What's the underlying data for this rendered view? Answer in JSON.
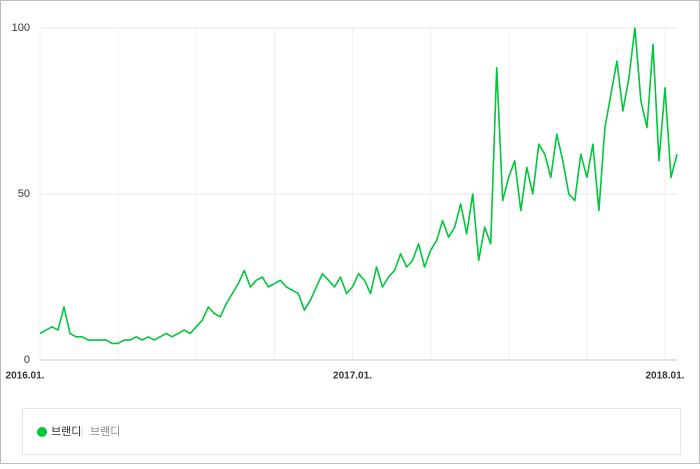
{
  "chart_data": {
    "type": "line",
    "categories": [
      "2016.01.",
      null,
      null,
      null,
      null,
      null,
      null,
      null,
      null,
      null,
      null,
      null,
      null,
      null,
      null,
      null,
      null,
      null,
      null,
      null,
      null,
      null,
      null,
      null,
      null,
      null,
      null,
      null,
      null,
      null,
      null,
      null,
      null,
      null,
      null,
      null,
      null,
      null,
      null,
      null,
      null,
      null,
      null,
      null,
      null,
      null,
      null,
      null,
      null,
      null,
      null,
      null,
      "2017.01.",
      null,
      null,
      null,
      null,
      null,
      null,
      null,
      null,
      null,
      null,
      null,
      null,
      null,
      null,
      null,
      null,
      null,
      null,
      null,
      null,
      null,
      null,
      null,
      null,
      null,
      null,
      null,
      null,
      null,
      null,
      null,
      null,
      null,
      null,
      null,
      null,
      null,
      null,
      null,
      null,
      null,
      null,
      null,
      null,
      null,
      null,
      null,
      null,
      null,
      null,
      null,
      "2018.01.",
      null,
      null
    ],
    "series": [
      {
        "name": "브랜디",
        "color": "#00c73c",
        "values": [
          8,
          9,
          10,
          9,
          16,
          8,
          7,
          7,
          6,
          6,
          6,
          6,
          5,
          5,
          6,
          6,
          7,
          6,
          7,
          6,
          7,
          8,
          7,
          8,
          9,
          8,
          10,
          12,
          16,
          14,
          13,
          17,
          20,
          23,
          27,
          22,
          24,
          25,
          22,
          23,
          24,
          22,
          21,
          20,
          15,
          18,
          22,
          26,
          24,
          22,
          25,
          20,
          22,
          26,
          24,
          20,
          28,
          22,
          25,
          27,
          32,
          28,
          30,
          35,
          28,
          33,
          36,
          42,
          37,
          40,
          47,
          38,
          50,
          30,
          40,
          35,
          88,
          48,
          55,
          60,
          45,
          58,
          50,
          65,
          62,
          55,
          68,
          60,
          50,
          48,
          62,
          55,
          65,
          45,
          70,
          80,
          90,
          75,
          85,
          100,
          78,
          70,
          95,
          60,
          82,
          55,
          62
        ]
      }
    ],
    "legend_keyword": "브랜디",
    "ylim": [
      0,
      100
    ],
    "yticks": [
      0,
      50,
      100
    ],
    "grid": true
  }
}
